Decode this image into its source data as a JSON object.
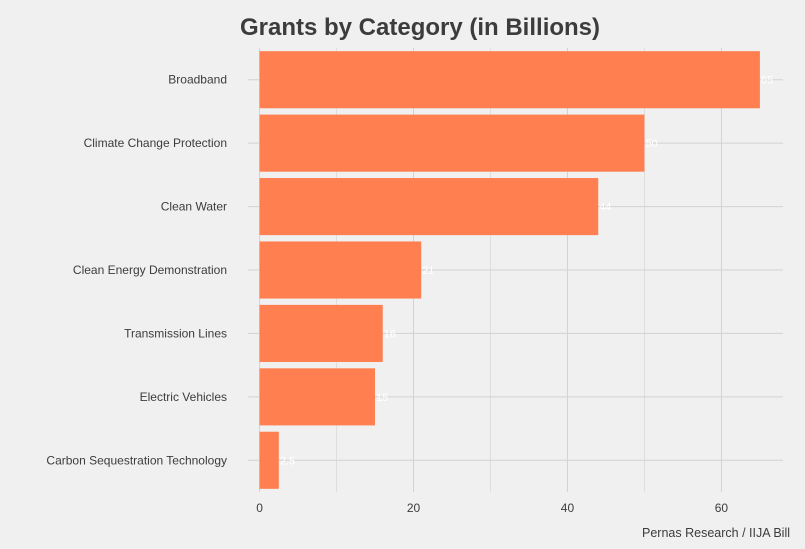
{
  "chart_data": {
    "type": "bar",
    "orientation": "horizontal",
    "title": "Grants by Category (in Billions)",
    "caption": "Pernas Research / IIJA Bill",
    "categories": [
      "Broadband",
      "Climate Change Protection",
      "Clean Water",
      "Clean Energy Demonstration",
      "Transmission Lines",
      "Electric Vehicles",
      "Carbon Sequestration Technology"
    ],
    "values": [
      65,
      50,
      44,
      21,
      16,
      15,
      2.5
    ],
    "value_labels": [
      "65",
      "50",
      "44",
      "21",
      "16",
      "15",
      "2.5"
    ],
    "xlim": [
      -1.5,
      68
    ],
    "xticks": [
      0,
      20,
      40,
      60
    ],
    "grid": true,
    "colors": {
      "bar": "#ff7f50",
      "background": "#f0f0f0",
      "grid": "#d2d2d2",
      "text": "#3c3c3c",
      "value_label": "#ffffff"
    }
  }
}
